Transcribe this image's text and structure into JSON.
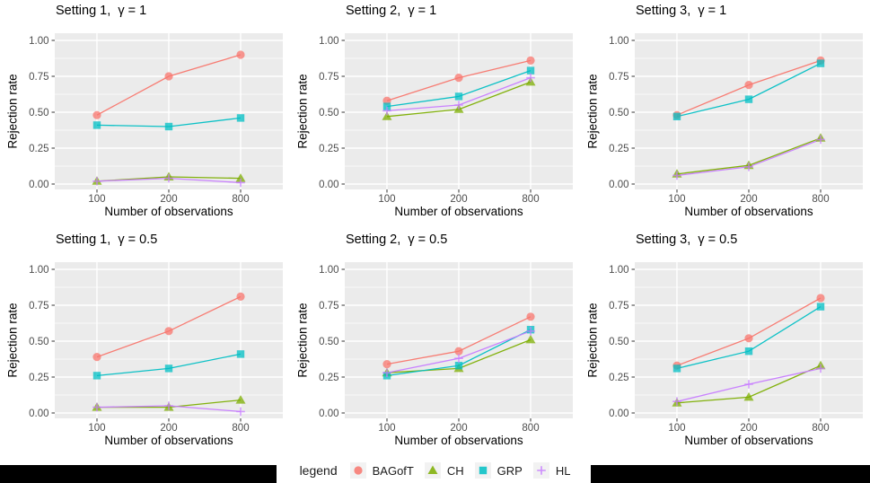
{
  "figure": {
    "panel_bg": "#EBEBEB",
    "grid_color": "#FFFFFF",
    "tick_color": "#333333",
    "tick_label_color": "#4D4D4D",
    "title_color": "#000000",
    "bottom_bar_color": "#000000",
    "legend_key_bg": "#F2F2F2"
  },
  "legend": {
    "title": "legend",
    "items": [
      {
        "name": "BAGofT",
        "marker": "circle",
        "color": "#F8766D"
      },
      {
        "name": "CH",
        "marker": "triangle",
        "color": "#7CAE00"
      },
      {
        "name": "GRP",
        "marker": "square",
        "color": "#00BFC4"
      },
      {
        "name": "HL",
        "marker": "plus",
        "color": "#C77CFF"
      }
    ]
  },
  "chart_data": [
    {
      "type": "line",
      "title": "Setting 1,  γ = 1",
      "xlabel": "Number of observations",
      "ylabel": "Rejection rate",
      "categories": [
        "100",
        "200",
        "800"
      ],
      "ylim": [
        0,
        1
      ],
      "yticks": [
        "0.00",
        "0.25",
        "0.50",
        "0.75",
        "1.00"
      ],
      "grid": "on",
      "series": [
        {
          "name": "BAGofT",
          "values": [
            0.48,
            0.75,
            0.9
          ]
        },
        {
          "name": "CH",
          "values": [
            0.02,
            0.05,
            0.04
          ]
        },
        {
          "name": "GRP",
          "values": [
            0.41,
            0.4,
            0.46
          ]
        },
        {
          "name": "HL",
          "values": [
            0.02,
            0.04,
            0.01
          ]
        }
      ]
    },
    {
      "type": "line",
      "title": "Setting 2,  γ = 1",
      "xlabel": "Number of observations",
      "ylabel": "Rejection rate",
      "categories": [
        "100",
        "200",
        "800"
      ],
      "ylim": [
        0,
        1
      ],
      "yticks": [
        "0.00",
        "0.25",
        "0.50",
        "0.75",
        "1.00"
      ],
      "grid": "on",
      "series": [
        {
          "name": "BAGofT",
          "values": [
            0.58,
            0.74,
            0.86
          ]
        },
        {
          "name": "CH",
          "values": [
            0.47,
            0.52,
            0.71
          ]
        },
        {
          "name": "GRP",
          "values": [
            0.54,
            0.61,
            0.79
          ]
        },
        {
          "name": "HL",
          "values": [
            0.51,
            0.55,
            0.74
          ]
        }
      ]
    },
    {
      "type": "line",
      "title": "Setting 3,  γ = 1",
      "xlabel": "Number of observations",
      "ylabel": "Rejection rate",
      "categories": [
        "100",
        "200",
        "800"
      ],
      "ylim": [
        0,
        1
      ],
      "yticks": [
        "0.00",
        "0.25",
        "0.50",
        "0.75",
        "1.00"
      ],
      "grid": "on",
      "series": [
        {
          "name": "BAGofT",
          "values": [
            0.48,
            0.69,
            0.86
          ]
        },
        {
          "name": "CH",
          "values": [
            0.07,
            0.13,
            0.32
          ]
        },
        {
          "name": "GRP",
          "values": [
            0.47,
            0.59,
            0.84
          ]
        },
        {
          "name": "HL",
          "values": [
            0.06,
            0.12,
            0.31
          ]
        }
      ]
    },
    {
      "type": "line",
      "title": "Setting 1,  γ = 0.5",
      "xlabel": "Number of observations",
      "ylabel": "Rejection rate",
      "categories": [
        "100",
        "200",
        "800"
      ],
      "ylim": [
        0,
        1
      ],
      "yticks": [
        "0.00",
        "0.25",
        "0.50",
        "0.75",
        "1.00"
      ],
      "grid": "on",
      "series": [
        {
          "name": "BAGofT",
          "values": [
            0.39,
            0.57,
            0.81
          ]
        },
        {
          "name": "CH",
          "values": [
            0.04,
            0.04,
            0.09
          ]
        },
        {
          "name": "GRP",
          "values": [
            0.26,
            0.31,
            0.41
          ]
        },
        {
          "name": "HL",
          "values": [
            0.04,
            0.05,
            0.01
          ]
        }
      ]
    },
    {
      "type": "line",
      "title": "Setting 2,  γ = 0.5",
      "xlabel": "Number of observations",
      "ylabel": "Rejection rate",
      "categories": [
        "100",
        "200",
        "800"
      ],
      "ylim": [
        0,
        1
      ],
      "yticks": [
        "0.00",
        "0.25",
        "0.50",
        "0.75",
        "1.00"
      ],
      "grid": "on",
      "series": [
        {
          "name": "BAGofT",
          "values": [
            0.34,
            0.43,
            0.67
          ]
        },
        {
          "name": "CH",
          "values": [
            0.28,
            0.31,
            0.51
          ]
        },
        {
          "name": "GRP",
          "values": [
            0.26,
            0.33,
            0.58
          ]
        },
        {
          "name": "HL",
          "values": [
            0.28,
            0.38,
            0.57
          ]
        }
      ]
    },
    {
      "type": "line",
      "title": "Setting 3,  γ = 0.5",
      "xlabel": "Number of observations",
      "ylabel": "Rejection rate",
      "categories": [
        "100",
        "200",
        "800"
      ],
      "ylim": [
        0,
        1
      ],
      "yticks": [
        "0.00",
        "0.25",
        "0.50",
        "0.75",
        "1.00"
      ],
      "grid": "on",
      "series": [
        {
          "name": "BAGofT",
          "values": [
            0.33,
            0.52,
            0.8
          ]
        },
        {
          "name": "CH",
          "values": [
            0.07,
            0.11,
            0.33
          ]
        },
        {
          "name": "GRP",
          "values": [
            0.31,
            0.43,
            0.74
          ]
        },
        {
          "name": "HL",
          "values": [
            0.08,
            0.2,
            0.31
          ]
        }
      ]
    }
  ]
}
